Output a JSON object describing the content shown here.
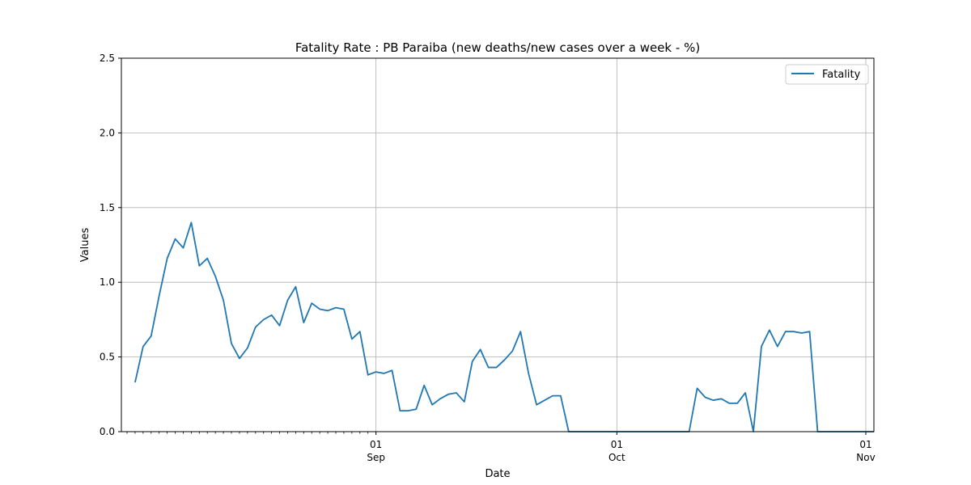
{
  "chart_data": {
    "type": "line",
    "title": "Fatality Rate : PB Paraiba (new deaths/new cases over a week - %)",
    "xlabel": "Date",
    "ylabel": "Values",
    "ylim": [
      0,
      2.5
    ],
    "yticks": [
      "0.0",
      "0.5",
      "1.0",
      "1.5",
      "2.0",
      "2.5"
    ],
    "xlim": [
      "2020-08-01",
      "2020-11-01"
    ],
    "xticks": [
      {
        "date": "2020-09-01",
        "day": "01",
        "month": "Sep"
      },
      {
        "date": "2020-10-01",
        "day": "01",
        "month": "Oct"
      },
      {
        "date": "2020-11-01",
        "day": "01",
        "month": "Nov"
      }
    ],
    "grid": true,
    "legend_position": "top-right",
    "series": [
      {
        "name": "Fatality",
        "color": "#1f77b4",
        "start_date": "2020-08-02",
        "values": [
          0.33,
          0.57,
          0.64,
          0.91,
          1.16,
          1.29,
          1.23,
          1.4,
          1.11,
          1.16,
          1.04,
          0.88,
          0.59,
          0.49,
          0.56,
          0.7,
          0.75,
          0.78,
          0.71,
          0.88,
          0.97,
          0.73,
          0.86,
          0.82,
          0.81,
          0.83,
          0.82,
          0.62,
          0.67,
          0.38,
          0.4,
          0.39,
          0.41,
          0.14,
          0.14,
          0.15,
          0.31,
          0.18,
          0.22,
          0.25,
          0.26,
          0.2,
          0.47,
          0.55,
          0.43,
          0.43,
          0.48,
          0.54,
          0.67,
          0.39,
          0.18,
          0.21,
          0.24,
          0.24,
          0.0,
          0.0,
          0.0,
          0.0,
          0.0,
          0.0,
          0.0,
          0.0,
          0.0,
          0.0,
          0.0,
          0.0,
          0.0,
          0.0,
          0.0,
          0.0,
          0.29,
          0.23,
          0.21,
          0.22,
          0.19,
          0.19,
          0.26,
          0.0,
          0.57,
          0.68,
          0.57,
          0.67,
          0.67,
          0.66,
          0.67,
          0.0,
          0.0,
          0.0,
          0.0,
          0.0,
          0.0,
          0.0,
          0.0
        ]
      }
    ]
  }
}
